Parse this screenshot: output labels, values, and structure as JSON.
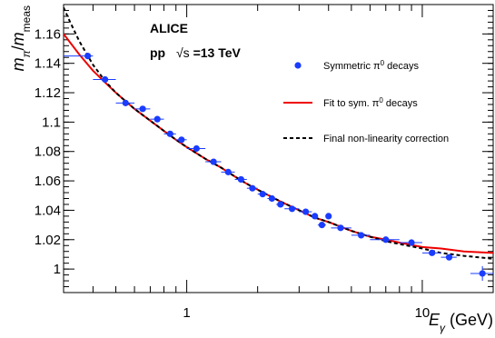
{
  "chart_data": {
    "type": "scatter",
    "collaboration": "ALICE",
    "system": "pp",
    "energy_symbol": "√s",
    "energy_value": "=13 TeV",
    "xlabel": "E",
    "xlabel_sub": "γ",
    "xlabel_unit": "(GeV)",
    "ylabel": "m",
    "ylabel_sub": "π",
    "ylabel_sep": "/",
    "ylabel_denom": "m",
    "ylabel_denom_sub": "meas",
    "x_scale": "log",
    "xlim": [
      0.3,
      20
    ],
    "ylim": [
      0.984,
      1.18
    ],
    "grid": false,
    "legend_position": "right",
    "x_ticks": [
      {
        "value": 1,
        "label": "1"
      },
      {
        "value": 10,
        "label": "10"
      }
    ],
    "y_ticks": [
      {
        "value": 1.0,
        "label": "1"
      },
      {
        "value": 1.02,
        "label": "1.02"
      },
      {
        "value": 1.04,
        "label": "1.04"
      },
      {
        "value": 1.06,
        "label": "1.06"
      },
      {
        "value": 1.08,
        "label": "1.08"
      },
      {
        "value": 1.1,
        "label": "1.1"
      },
      {
        "value": 1.12,
        "label": "1.12"
      },
      {
        "value": 1.14,
        "label": "1.14"
      },
      {
        "value": 1.16,
        "label": "1.16"
      }
    ],
    "series": [
      {
        "name": "Symmetric π⁰ decays",
        "name_base": "Symmetric π",
        "name_sup": "0",
        "name_tail": " decays",
        "kind": "points",
        "color": "#1a3cff",
        "points": [
          {
            "x": 0.38,
            "y": 1.145,
            "xlo": 0.3,
            "xhi": 0.4
          },
          {
            "x": 0.45,
            "y": 1.129,
            "xlo": 0.4,
            "xhi": 0.5
          },
          {
            "x": 0.55,
            "y": 1.113,
            "xlo": 0.5,
            "xhi": 0.6
          },
          {
            "x": 0.65,
            "y": 1.109,
            "xlo": 0.6,
            "xhi": 0.7
          },
          {
            "x": 0.75,
            "y": 1.102,
            "xlo": 0.7,
            "xhi": 0.8
          },
          {
            "x": 0.85,
            "y": 1.092,
            "xlo": 0.8,
            "xhi": 0.9
          },
          {
            "x": 0.95,
            "y": 1.088,
            "xlo": 0.9,
            "xhi": 1.0
          },
          {
            "x": 1.1,
            "y": 1.082,
            "xlo": 1.0,
            "xhi": 1.2
          },
          {
            "x": 1.3,
            "y": 1.073,
            "xlo": 1.2,
            "xhi": 1.4
          },
          {
            "x": 1.5,
            "y": 1.066,
            "xlo": 1.4,
            "xhi": 1.6
          },
          {
            "x": 1.7,
            "y": 1.061,
            "xlo": 1.6,
            "xhi": 1.8
          },
          {
            "x": 1.9,
            "y": 1.055,
            "xlo": 1.8,
            "xhi": 2.0
          },
          {
            "x": 2.1,
            "y": 1.051,
            "xlo": 2.0,
            "xhi": 2.2
          },
          {
            "x": 2.3,
            "y": 1.048,
            "xlo": 2.2,
            "xhi": 2.4
          },
          {
            "x": 2.5,
            "y": 1.044,
            "xlo": 2.4,
            "xhi": 2.6
          },
          {
            "x": 2.8,
            "y": 1.041,
            "xlo": 2.6,
            "xhi": 3.0
          },
          {
            "x": 3.2,
            "y": 1.039,
            "xlo": 3.0,
            "xhi": 3.4
          },
          {
            "x": 3.5,
            "y": 1.036,
            "xlo": 3.4,
            "xhi": 3.6
          },
          {
            "x": 3.75,
            "y": 1.03,
            "xlo": 3.6,
            "xhi": 3.9
          },
          {
            "x": 4.0,
            "y": 1.036,
            "xlo": 3.9,
            "xhi": 4.1
          },
          {
            "x": 4.5,
            "y": 1.028,
            "xlo": 4.1,
            "xhi": 5.0
          },
          {
            "x": 5.5,
            "y": 1.023,
            "xlo": 5.0,
            "xhi": 6.0
          },
          {
            "x": 7.0,
            "y": 1.02,
            "xlo": 6.0,
            "xhi": 8.0
          },
          {
            "x": 9.0,
            "y": 1.018,
            "xlo": 8.0,
            "xhi": 10.0
          },
          {
            "x": 11.0,
            "y": 1.011,
            "xlo": 10.0,
            "xhi": 12.0
          },
          {
            "x": 13.0,
            "y": 1.008,
            "xlo": 12.0,
            "xhi": 14.0
          },
          {
            "x": 18.0,
            "y": 0.997,
            "xlo": 16.0,
            "xhi": 20.0,
            "yerr": 0.005
          }
        ]
      },
      {
        "name": "Fit to sym. π⁰ decays",
        "name_base": "Fit to sym. π",
        "name_sup": "0",
        "name_tail": " decays",
        "kind": "line",
        "color": "#ee0000",
        "line_style": "solid",
        "points": [
          {
            "x": 0.3,
            "y": 1.16
          },
          {
            "x": 0.35,
            "y": 1.146
          },
          {
            "x": 0.4,
            "y": 1.135
          },
          {
            "x": 0.45,
            "y": 1.127
          },
          {
            "x": 0.5,
            "y": 1.12
          },
          {
            "x": 0.6,
            "y": 1.109
          },
          {
            "x": 0.7,
            "y": 1.101
          },
          {
            "x": 0.8,
            "y": 1.094
          },
          {
            "x": 0.9,
            "y": 1.088
          },
          {
            "x": 1.0,
            "y": 1.083
          },
          {
            "x": 1.2,
            "y": 1.075
          },
          {
            "x": 1.4,
            "y": 1.069
          },
          {
            "x": 1.6,
            "y": 1.063
          },
          {
            "x": 1.8,
            "y": 1.058
          },
          {
            "x": 2.0,
            "y": 1.054
          },
          {
            "x": 2.5,
            "y": 1.046
          },
          {
            "x": 3.0,
            "y": 1.04
          },
          {
            "x": 3.5,
            "y": 1.035
          },
          {
            "x": 4.0,
            "y": 1.032
          },
          {
            "x": 5.0,
            "y": 1.026
          },
          {
            "x": 6.0,
            "y": 1.022
          },
          {
            "x": 7.0,
            "y": 1.02
          },
          {
            "x": 8.0,
            "y": 1.018
          },
          {
            "x": 10.0,
            "y": 1.015
          },
          {
            "x": 12.0,
            "y": 1.014
          },
          {
            "x": 15.0,
            "y": 1.012
          },
          {
            "x": 20.0,
            "y": 1.011
          }
        ]
      },
      {
        "name": "Final non-linearity correction",
        "kind": "line",
        "color": "#000000",
        "line_style": "dashed",
        "points": [
          {
            "x": 0.3,
            "y": 1.178
          },
          {
            "x": 0.32,
            "y": 1.168
          },
          {
            "x": 0.35,
            "y": 1.155
          },
          {
            "x": 0.4,
            "y": 1.139
          },
          {
            "x": 0.45,
            "y": 1.128
          },
          {
            "x": 0.5,
            "y": 1.12
          },
          {
            "x": 0.6,
            "y": 1.109
          },
          {
            "x": 0.7,
            "y": 1.101
          },
          {
            "x": 0.8,
            "y": 1.094
          },
          {
            "x": 0.9,
            "y": 1.088
          },
          {
            "x": 1.0,
            "y": 1.083
          },
          {
            "x": 1.2,
            "y": 1.075
          },
          {
            "x": 1.4,
            "y": 1.069
          },
          {
            "x": 1.6,
            "y": 1.063
          },
          {
            "x": 1.8,
            "y": 1.058
          },
          {
            "x": 2.0,
            "y": 1.054
          },
          {
            "x": 2.5,
            "y": 1.046
          },
          {
            "x": 3.0,
            "y": 1.04
          },
          {
            "x": 3.5,
            "y": 1.035
          },
          {
            "x": 4.0,
            "y": 1.032
          },
          {
            "x": 5.0,
            "y": 1.026
          },
          {
            "x": 6.0,
            "y": 1.022
          },
          {
            "x": 7.0,
            "y": 1.019
          },
          {
            "x": 8.0,
            "y": 1.017
          },
          {
            "x": 10.0,
            "y": 1.014
          },
          {
            "x": 12.0,
            "y": 1.011
          },
          {
            "x": 15.0,
            "y": 1.009
          },
          {
            "x": 20.0,
            "y": 1.007
          }
        ]
      }
    ]
  }
}
